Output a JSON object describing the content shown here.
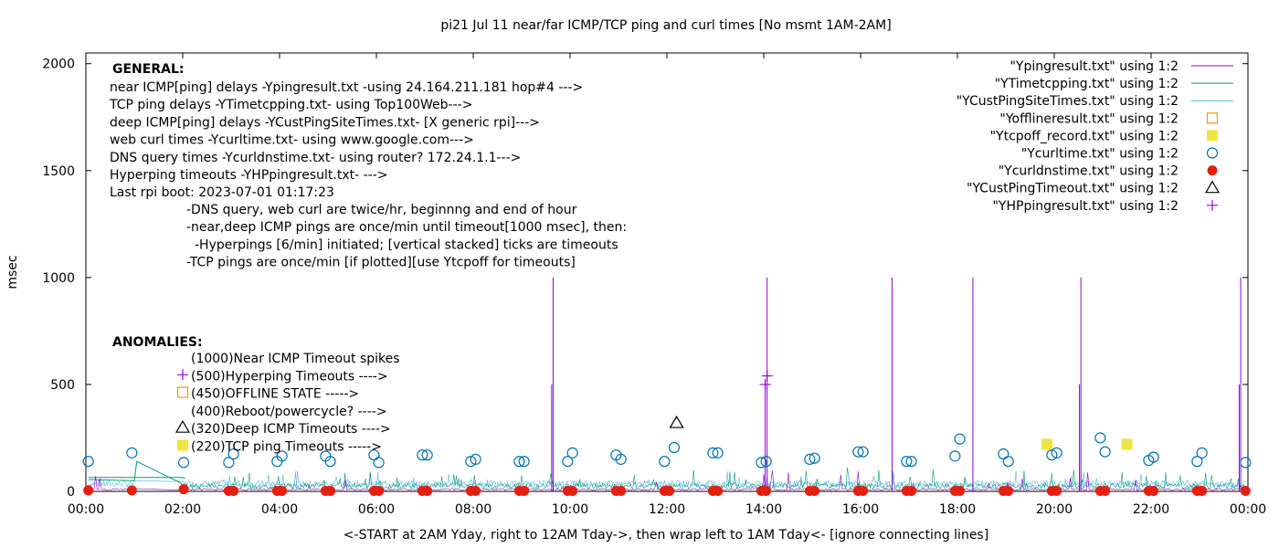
{
  "chart_data": {
    "type": "line",
    "title": "pi21 Jul 11  near/far ICMP/TCP ping and curl times [No msmt 1AM-2AM]",
    "ylabel": "msec",
    "xlabel": "<-START at 2AM Yday, right to 12AM Tday->, then wrap left to 1AM Tday<- [ignore connecting lines]",
    "xlim": [
      0,
      24
    ],
    "ylim": [
      0,
      2050
    ],
    "x_ticks": [
      "00:00",
      "02:00",
      "04:00",
      "06:00",
      "08:00",
      "10:00",
      "12:00",
      "14:00",
      "16:00",
      "18:00",
      "20:00",
      "22:00",
      "00:00"
    ],
    "y_ticks": [
      0,
      500,
      1000,
      1500,
      2000
    ],
    "legend_position": "top-right",
    "series": [
      {
        "name": "\"Ypingresult.txt\" using 1:2",
        "style": "line",
        "color": "#9400d3",
        "spikes": [
          {
            "x": 9.65,
            "y": 1000
          },
          {
            "x": 9.62,
            "y": 500
          },
          {
            "x": 14.07,
            "y": 1000
          },
          {
            "x": 14.03,
            "y": 500
          },
          {
            "x": 16.65,
            "y": 1000
          },
          {
            "x": 18.32,
            "y": 1000
          },
          {
            "x": 20.55,
            "y": 1000
          },
          {
            "x": 20.52,
            "y": 500
          },
          {
            "x": 23.85,
            "y": 1000
          },
          {
            "x": 23.82,
            "y": 500
          }
        ]
      },
      {
        "name": "\"YTimetcpping.txt\" using 1:2",
        "style": "line",
        "color": "#009e73",
        "points": [
          {
            "x": 0.05,
            "y": 55
          },
          {
            "x": 1.0,
            "y": 50
          },
          {
            "x": 1.05,
            "y": 140
          },
          {
            "x": 1.5,
            "y": 90
          },
          {
            "x": 1.95,
            "y": 40
          },
          {
            "x": 2.1,
            "y": 10
          },
          {
            "x": 0.05,
            "y": 65
          },
          {
            "x": 2.0,
            "y": 65
          },
          {
            "x": 2.05,
            "y": 60
          }
        ]
      },
      {
        "name": "\"YCustPingSiteTimes.txt\" using 1:2",
        "style": "line",
        "color": "#56b4e9"
      },
      {
        "name": "\"Yofflineresult.txt\" using 1:2",
        "style": "open-square",
        "color": "#e69f00",
        "points": []
      },
      {
        "name": "\"Ytcpoff_record.txt\" using 1:2",
        "style": "filled-square",
        "color": "#f0e442",
        "points": [
          {
            "x": 19.85,
            "y": 220
          },
          {
            "x": 21.5,
            "y": 220
          }
        ]
      },
      {
        "name": "\"Ycurltime.txt\" using 1:2",
        "style": "open-circle",
        "color": "#0072b2",
        "points": [
          {
            "x": 0.05,
            "y": 140
          },
          {
            "x": 0.95,
            "y": 180
          },
          {
            "x": 2.02,
            "y": 135
          },
          {
            "x": 2.95,
            "y": 135
          },
          {
            "x": 3.05,
            "y": 175
          },
          {
            "x": 3.95,
            "y": 140
          },
          {
            "x": 4.05,
            "y": 165
          },
          {
            "x": 4.95,
            "y": 165
          },
          {
            "x": 5.05,
            "y": 140
          },
          {
            "x": 5.95,
            "y": 170
          },
          {
            "x": 6.05,
            "y": 135
          },
          {
            "x": 6.95,
            "y": 170
          },
          {
            "x": 7.05,
            "y": 170
          },
          {
            "x": 7.95,
            "y": 140
          },
          {
            "x": 8.05,
            "y": 150
          },
          {
            "x": 8.95,
            "y": 140
          },
          {
            "x": 9.05,
            "y": 140
          },
          {
            "x": 9.95,
            "y": 140
          },
          {
            "x": 10.05,
            "y": 180
          },
          {
            "x": 10.95,
            "y": 170
          },
          {
            "x": 11.05,
            "y": 150
          },
          {
            "x": 11.95,
            "y": 140
          },
          {
            "x": 12.15,
            "y": 205
          },
          {
            "x": 12.95,
            "y": 180
          },
          {
            "x": 13.05,
            "y": 180
          },
          {
            "x": 13.95,
            "y": 135
          },
          {
            "x": 14.05,
            "y": 140
          },
          {
            "x": 14.95,
            "y": 150
          },
          {
            "x": 15.05,
            "y": 155
          },
          {
            "x": 15.95,
            "y": 185
          },
          {
            "x": 16.05,
            "y": 185
          },
          {
            "x": 16.95,
            "y": 140
          },
          {
            "x": 17.05,
            "y": 140
          },
          {
            "x": 17.95,
            "y": 165
          },
          {
            "x": 18.05,
            "y": 245
          },
          {
            "x": 18.95,
            "y": 175
          },
          {
            "x": 19.05,
            "y": 140
          },
          {
            "x": 19.95,
            "y": 170
          },
          {
            "x": 20.05,
            "y": 180
          },
          {
            "x": 20.95,
            "y": 250
          },
          {
            "x": 21.05,
            "y": 185
          },
          {
            "x": 21.95,
            "y": 145
          },
          {
            "x": 22.05,
            "y": 160
          },
          {
            "x": 22.95,
            "y": 140
          },
          {
            "x": 23.05,
            "y": 180
          },
          {
            "x": 23.95,
            "y": 135
          }
        ]
      },
      {
        "name": "\"Ycurldnstime.txt\" using 1:2",
        "style": "filled-circle",
        "color": "#e51e10",
        "points": [
          {
            "x": 0.05,
            "y": 5
          },
          {
            "x": 0.95,
            "y": 5
          },
          {
            "x": 2.02,
            "y": 10
          },
          {
            "x": 2.95,
            "y": 2
          },
          {
            "x": 3.05,
            "y": 2
          },
          {
            "x": 3.95,
            "y": 2
          },
          {
            "x": 4.05,
            "y": 2
          },
          {
            "x": 4.95,
            "y": 2
          },
          {
            "x": 5.05,
            "y": 2
          },
          {
            "x": 5.95,
            "y": 2
          },
          {
            "x": 6.05,
            "y": 2
          },
          {
            "x": 6.95,
            "y": 2
          },
          {
            "x": 7.05,
            "y": 2
          },
          {
            "x": 7.95,
            "y": 2
          },
          {
            "x": 8.05,
            "y": 2
          },
          {
            "x": 8.95,
            "y": 2
          },
          {
            "x": 9.05,
            "y": 2
          },
          {
            "x": 9.95,
            "y": 2
          },
          {
            "x": 10.05,
            "y": 2
          },
          {
            "x": 10.95,
            "y": 2
          },
          {
            "x": 11.05,
            "y": 2
          },
          {
            "x": 11.95,
            "y": 2
          },
          {
            "x": 12.05,
            "y": 2
          },
          {
            "x": 12.95,
            "y": 2
          },
          {
            "x": 13.05,
            "y": 2
          },
          {
            "x": 13.95,
            "y": 2
          },
          {
            "x": 14.05,
            "y": 2
          },
          {
            "x": 14.95,
            "y": 2
          },
          {
            "x": 15.05,
            "y": 2
          },
          {
            "x": 15.95,
            "y": 2
          },
          {
            "x": 16.05,
            "y": 2
          },
          {
            "x": 16.95,
            "y": 2
          },
          {
            "x": 17.05,
            "y": 2
          },
          {
            "x": 17.95,
            "y": 2
          },
          {
            "x": 18.05,
            "y": 2
          },
          {
            "x": 18.95,
            "y": 2
          },
          {
            "x": 19.05,
            "y": 2
          },
          {
            "x": 19.95,
            "y": 2
          },
          {
            "x": 20.05,
            "y": 2
          },
          {
            "x": 20.95,
            "y": 2
          },
          {
            "x": 21.05,
            "y": 2
          },
          {
            "x": 21.95,
            "y": 2
          },
          {
            "x": 22.05,
            "y": 2
          },
          {
            "x": 22.95,
            "y": 2
          },
          {
            "x": 23.05,
            "y": 2
          },
          {
            "x": 23.95,
            "y": 2
          }
        ]
      },
      {
        "name": "\"YCustPingTimeout.txt\" using 1:2",
        "style": "open-triangle",
        "color": "#000000",
        "points": [
          {
            "x": 12.2,
            "y": 320
          }
        ]
      },
      {
        "name": "\"YHPpingresult.txt\" using 1:2",
        "style": "plus",
        "color": "#9400d3",
        "points": [
          {
            "x": 14.03,
            "y": 500
          },
          {
            "x": 14.07,
            "y": 540
          }
        ]
      }
    ],
    "annotations": {
      "general_heading": "GENERAL:",
      "general_lines": [
        "near ICMP[ping] delays -Ypingresult.txt -using 24.164.211.181 hop#4 --->",
        "TCP ping delays -YTimetcpping.txt- using Top100Web--->",
        "deep ICMP[ping] delays -YCustPingSiteTimes.txt- [X generic rpi]--->",
        "web curl times -Ycurltime.txt- using www.google.com--->",
        "DNS query times -Ycurldnstime.txt- using router? 172.24.1.1--->",
        "Hyperping timeouts -YHPpingresult.txt- --->",
        "Last rpi boot: 2023-07-01 01:17:23"
      ],
      "notes": [
        "-DNS query, web curl are twice/hr, beginnng and end of hour",
        "-near,deep ICMP pings are once/min until timeout[1000 msec], then:",
        "-Hyperpings [6/min] initiated; [vertical stacked] ticks are timeouts",
        "-TCP pings are once/min [if plotted][use Ytcpoff for timeouts]"
      ],
      "anomalies_heading": "ANOMALIES:",
      "anomalies": [
        {
          "text": "(1000)Near ICMP Timeout spikes",
          "marker": "none"
        },
        {
          "text": "(500)Hyperping Timeouts ---->",
          "marker": "plus"
        },
        {
          "text": "(450)OFFLINE STATE ----->",
          "marker": "open-square"
        },
        {
          "text": "(400)Reboot/powercycle? ---->",
          "marker": "none"
        },
        {
          "text": "(320)Deep ICMP Timeouts ---->",
          "marker": "open-triangle"
        },
        {
          "text": "(220)TCP ping Timeouts ----->",
          "marker": "filled-square"
        }
      ]
    }
  }
}
